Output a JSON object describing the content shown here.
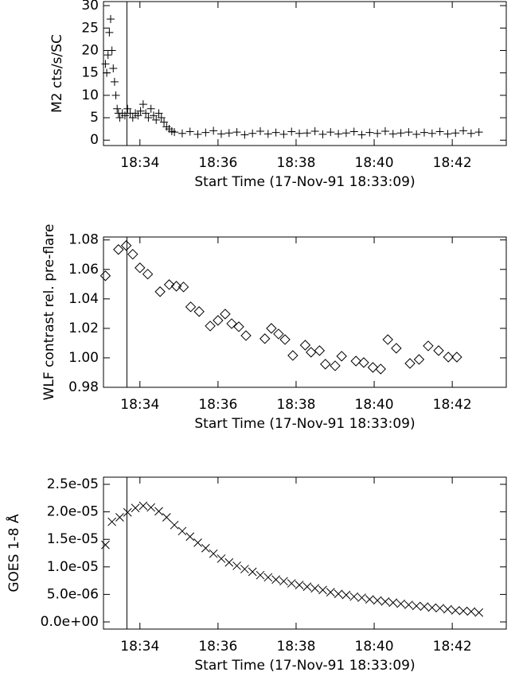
{
  "chart_data": [
    {
      "type": "scatter",
      "marker": "plus",
      "color": "#000000",
      "y_label": "M2 cts/s/SC",
      "x_label": "Start Time (17-Nov-91 18:33:09)",
      "xlim": [
        -5,
        614
      ],
      "xticks": [
        {
          "value": 51,
          "label": "18:34"
        },
        {
          "value": 171,
          "label": "18:36"
        },
        {
          "value": 291,
          "label": "18:38"
        },
        {
          "value": 411,
          "label": "18:40"
        },
        {
          "value": 531,
          "label": "18:42"
        }
      ],
      "ylim": [
        -1.2,
        30.9
      ],
      "yticks": [
        0,
        5,
        10,
        15,
        20,
        25,
        30
      ],
      "vline": 31,
      "x": [
        -2,
        0,
        2,
        4,
        6,
        8,
        10,
        12,
        14,
        16,
        18,
        20,
        24,
        28,
        32,
        36,
        40,
        44,
        48,
        52,
        56,
        60,
        64,
        68,
        72,
        76,
        80,
        84,
        88,
        92,
        96,
        100,
        104,
        116,
        128,
        140,
        152,
        164,
        176,
        188,
        200,
        212,
        224,
        236,
        248,
        260,
        272,
        284,
        296,
        308,
        320,
        332,
        344,
        356,
        368,
        380,
        392,
        404,
        416,
        428,
        440,
        452,
        464,
        476,
        488,
        500,
        512,
        524,
        536,
        548,
        560,
        572
      ],
      "values": [
        17,
        15,
        19,
        24,
        27,
        20,
        16,
        13,
        10,
        7,
        6,
        5,
        6,
        5.5,
        7,
        6,
        5,
        6,
        5.5,
        6.5,
        8,
        6,
        5,
        7,
        5.5,
        4.5,
        6,
        5,
        4,
        3,
        2.5,
        2,
        1.8,
        1.5,
        1.9,
        1.3,
        1.7,
        2.1,
        1.4,
        1.6,
        1.8,
        1.2,
        1.5,
        2.0,
        1.4,
        1.7,
        1.3,
        1.9,
        1.5,
        1.6,
        2.0,
        1.3,
        1.8,
        1.4,
        1.6,
        1.9,
        1.2,
        1.7,
        1.5,
        2.0,
        1.4,
        1.6,
        1.8,
        1.3,
        1.7,
        1.5,
        1.9,
        1.4,
        1.6,
        2.1,
        1.5,
        1.8
      ]
    },
    {
      "type": "scatter",
      "marker": "diamond",
      "color": "#000000",
      "y_label": "WLF contrast rel. pre-flare",
      "x_label": "Start Time (17-Nov-91 18:33:09)",
      "xlim": [
        -5,
        614
      ],
      "xticks": [
        {
          "value": 51,
          "label": "18:34"
        },
        {
          "value": 171,
          "label": "18:36"
        },
        {
          "value": 291,
          "label": "18:38"
        },
        {
          "value": 411,
          "label": "18:40"
        },
        {
          "value": 531,
          "label": "18:42"
        }
      ],
      "ylim": [
        0.98,
        1.082
      ],
      "yticks": [
        0.98,
        {
          "value": 1,
          "label": "1.00"
        },
        1.02,
        1.04,
        1.06,
        1.08
      ],
      "vline": 31,
      "x": [
        -2,
        18,
        30,
        40,
        51,
        63,
        82,
        96,
        107,
        118,
        129,
        142,
        159,
        171,
        182,
        192,
        203,
        214,
        243,
        253,
        264,
        274,
        286,
        305,
        314,
        327,
        336,
        351,
        361,
        383,
        395,
        409,
        421,
        432,
        445,
        466,
        480,
        494,
        510,
        525,
        538
      ],
      "values": [
        1.0557,
        1.0735,
        1.0762,
        1.0703,
        1.0611,
        1.0568,
        1.0449,
        1.0497,
        1.0486,
        1.0481,
        1.0346,
        1.0314,
        1.0216,
        1.0254,
        1.0297,
        1.0232,
        1.0211,
        1.0151,
        1.013,
        1.02,
        1.0162,
        1.0124,
        1.0016,
        1.0086,
        1.0038,
        1.0049,
        0.9957,
        0.9946,
        1.0011,
        0.9978,
        0.9968,
        0.9935,
        0.9924,
        1.0124,
        1.0065,
        0.9962,
        0.9989,
        1.0081,
        1.0049,
        1.0005,
        1.0005
      ]
    },
    {
      "type": "scatter",
      "marker": "x",
      "color": "#000000",
      "y_label": "GOES 1-8 Å",
      "x_label": "Start Time (17-Nov-91 18:33:09)",
      "xlim": [
        -5,
        614
      ],
      "xticks": [
        {
          "value": 51,
          "label": "18:34"
        },
        {
          "value": 171,
          "label": "18:36"
        },
        {
          "value": 291,
          "label": "18:38"
        },
        {
          "value": 411,
          "label": "18:40"
        },
        {
          "value": 531,
          "label": "18:42"
        }
      ],
      "ylim": [
        -1.3e-06,
        2.63e-05
      ],
      "yticks": [
        {
          "value": 0,
          "label": "0.0e+00"
        },
        {
          "value": 5e-06,
          "label": "5.0e-06"
        },
        {
          "value": 1e-05,
          "label": "1.0e-05"
        },
        {
          "value": 1.5e-05,
          "label": "1.5e-05"
        },
        {
          "value": 2e-05,
          "label": "2.0e-05"
        },
        {
          "value": 2.5e-05,
          "label": "2.5e-05"
        }
      ],
      "vline": 31,
      "x": [
        -2,
        8,
        20,
        32,
        44,
        56,
        68,
        80,
        92,
        104,
        116,
        128,
        140,
        152,
        164,
        176,
        188,
        200,
        212,
        224,
        236,
        248,
        260,
        272,
        284,
        296,
        308,
        320,
        332,
        344,
        356,
        368,
        380,
        392,
        404,
        416,
        428,
        440,
        452,
        464,
        476,
        488,
        500,
        512,
        524,
        536,
        548,
        560,
        572
      ],
      "values": [
        1.4e-05,
        1.82e-05,
        1.9e-05,
        1.99e-05,
        2.07e-05,
        2.11e-05,
        2.08e-05,
        2.01e-05,
        1.9e-05,
        1.76e-05,
        1.65e-05,
        1.55e-05,
        1.44e-05,
        1.34e-05,
        1.24e-05,
        1.15e-05,
        1.08e-05,
        1.02e-05,
        9.6e-06,
        9.1e-06,
        8.5e-06,
        8.1e-06,
        7.7e-06,
        7.4e-06,
        7e-06,
        6.7e-06,
        6.4e-06,
        6.1e-06,
        5.8e-06,
        5.4e-06,
        5.1e-06,
        4.9e-06,
        4.6e-06,
        4.4e-06,
        4.1e-06,
        3.9e-06,
        3.7e-06,
        3.5e-06,
        3.3e-06,
        3.1e-06,
        2.9e-06,
        2.8e-06,
        2.6e-06,
        2.5e-06,
        2.3e-06,
        2.1e-06,
        2e-06,
        1.9e-06,
        1.7e-06
      ]
    }
  ]
}
